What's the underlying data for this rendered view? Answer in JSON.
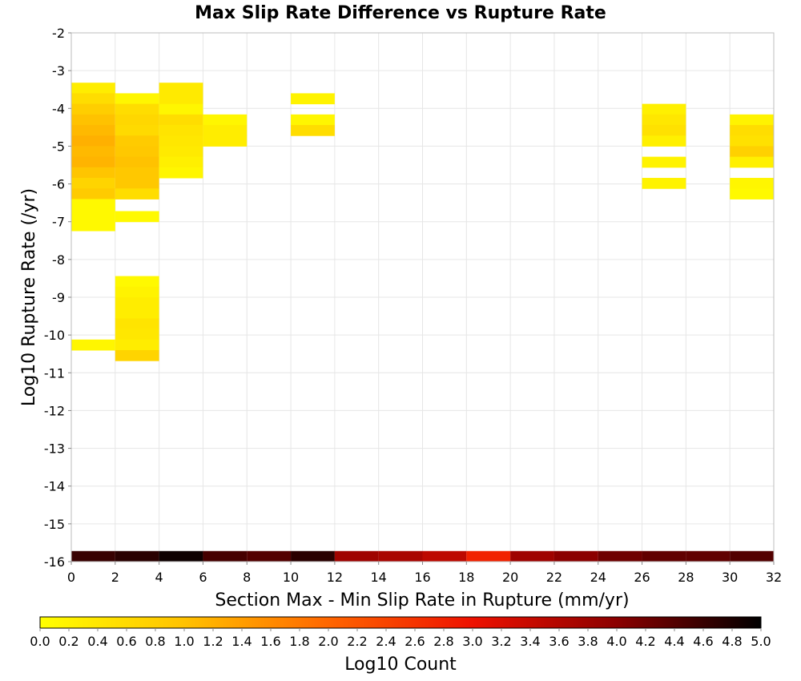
{
  "chart_data": {
    "type": "heatmap",
    "title": "Max Slip Rate Difference vs Rupture Rate",
    "xlabel": "Section Max - Min Slip Rate in Rupture (mm/yr)",
    "ylabel": "Log10 Rupture Rate (/yr)",
    "xlim": [
      0,
      32
    ],
    "ylim": [
      -16,
      -2
    ],
    "x_ticks": [
      "0",
      "2",
      "4",
      "6",
      "8",
      "10",
      "12",
      "14",
      "16",
      "18",
      "20",
      "22",
      "24",
      "26",
      "28",
      "30",
      "32"
    ],
    "y_ticks": [
      "-2",
      "-3",
      "-4",
      "-5",
      "-6",
      "-7",
      "-8",
      "-9",
      "-10",
      "-11",
      "-12",
      "-13",
      "-14",
      "-15",
      "-16"
    ],
    "grid": true,
    "x_bin_width": 2,
    "y_bin_width": 0.28,
    "colorbar": {
      "label": "Log10 Count",
      "range": [
        0,
        5
      ],
      "ticks": [
        "0.0",
        "0.2",
        "0.4",
        "0.6",
        "0.8",
        "1.0",
        "1.2",
        "1.4",
        "1.6",
        "1.8",
        "2.0",
        "2.2",
        "2.4",
        "2.6",
        "2.8",
        "3.0",
        "3.2",
        "3.4",
        "3.6",
        "3.8",
        "4.0",
        "4.2",
        "4.4",
        "4.6",
        "4.8",
        "5.0"
      ],
      "colors": [
        "#ffff00",
        "#ffc200",
        "#ff6600",
        "#ee1100",
        "#8b0000",
        "#000000"
      ]
    },
    "cells": [
      {
        "x": 0,
        "y": -3.6,
        "v": 0.3
      },
      {
        "x": 0,
        "y": -3.88,
        "v": 0.55
      },
      {
        "x": 0,
        "y": -4.16,
        "v": 0.8
      },
      {
        "x": 0,
        "y": -4.44,
        "v": 1.0
      },
      {
        "x": 0,
        "y": -4.72,
        "v": 1.1
      },
      {
        "x": 0,
        "y": -5.0,
        "v": 1.2
      },
      {
        "x": 0,
        "y": -5.28,
        "v": 1.1
      },
      {
        "x": 0,
        "y": -5.56,
        "v": 1.15
      },
      {
        "x": 0,
        "y": -5.84,
        "v": 0.95
      },
      {
        "x": 0,
        "y": -6.12,
        "v": 0.7
      },
      {
        "x": 0,
        "y": -6.4,
        "v": 0.85
      },
      {
        "x": 0,
        "y": -6.68,
        "v": 0.1
      },
      {
        "x": 0,
        "y": -6.96,
        "v": 0.1
      },
      {
        "x": 0,
        "y": -7.24,
        "v": 0.1
      },
      {
        "x": 0,
        "y": -10.4,
        "v": 0.15
      },
      {
        "x": 2,
        "y": -3.88,
        "v": 0.15
      },
      {
        "x": 2,
        "y": -4.16,
        "v": 0.55
      },
      {
        "x": 2,
        "y": -4.44,
        "v": 0.65
      },
      {
        "x": 2,
        "y": -4.72,
        "v": 0.6
      },
      {
        "x": 2,
        "y": -5.0,
        "v": 0.85
      },
      {
        "x": 2,
        "y": -5.28,
        "v": 0.9
      },
      {
        "x": 2,
        "y": -5.56,
        "v": 1.0
      },
      {
        "x": 2,
        "y": -5.84,
        "v": 0.9
      },
      {
        "x": 2,
        "y": -6.12,
        "v": 0.9
      },
      {
        "x": 2,
        "y": -6.4,
        "v": 0.55
      },
      {
        "x": 2,
        "y": -7.0,
        "v": 0.1
      },
      {
        "x": 2,
        "y": -8.72,
        "v": 0.1
      },
      {
        "x": 2,
        "y": -9.0,
        "v": 0.2
      },
      {
        "x": 2,
        "y": -9.28,
        "v": 0.3
      },
      {
        "x": 2,
        "y": -9.56,
        "v": 0.3
      },
      {
        "x": 2,
        "y": -9.84,
        "v": 0.45
      },
      {
        "x": 2,
        "y": -10.12,
        "v": 0.4
      },
      {
        "x": 2,
        "y": -10.4,
        "v": 0.3
      },
      {
        "x": 2,
        "y": -10.68,
        "v": 0.7
      },
      {
        "x": 4,
        "y": -3.6,
        "v": 0.35
      },
      {
        "x": 4,
        "y": -3.88,
        "v": 0.35
      },
      {
        "x": 4,
        "y": -4.16,
        "v": 0.15
      },
      {
        "x": 4,
        "y": -4.44,
        "v": 0.55
      },
      {
        "x": 4,
        "y": -4.72,
        "v": 0.45
      },
      {
        "x": 4,
        "y": -5.0,
        "v": 0.4
      },
      {
        "x": 4,
        "y": -5.28,
        "v": 0.35
      },
      {
        "x": 4,
        "y": -5.56,
        "v": 0.25
      },
      {
        "x": 4,
        "y": -5.84,
        "v": 0.15
      },
      {
        "x": 6,
        "y": -4.44,
        "v": 0.15
      },
      {
        "x": 6,
        "y": -4.72,
        "v": 0.3
      },
      {
        "x": 6,
        "y": -5.0,
        "v": 0.3
      },
      {
        "x": 10,
        "y": -3.88,
        "v": 0.2
      },
      {
        "x": 10,
        "y": -4.44,
        "v": 0.15
      },
      {
        "x": 10,
        "y": -4.72,
        "v": 0.55
      },
      {
        "x": 26,
        "y": -4.16,
        "v": 0.25
      },
      {
        "x": 26,
        "y": -4.44,
        "v": 0.4
      },
      {
        "x": 26,
        "y": -4.72,
        "v": 0.5
      },
      {
        "x": 26,
        "y": -5.0,
        "v": 0.25
      },
      {
        "x": 26,
        "y": -5.56,
        "v": 0.2
      },
      {
        "x": 26,
        "y": -6.12,
        "v": 0.2
      },
      {
        "x": 30,
        "y": -4.44,
        "v": 0.2
      },
      {
        "x": 30,
        "y": -4.72,
        "v": 0.55
      },
      {
        "x": 30,
        "y": -5.0,
        "v": 0.5
      },
      {
        "x": 30,
        "y": -5.28,
        "v": 0.75
      },
      {
        "x": 30,
        "y": -5.56,
        "v": 0.25
      },
      {
        "x": 30,
        "y": -6.12,
        "v": 0.15
      },
      {
        "x": 30,
        "y": -6.4,
        "v": 0.1
      },
      {
        "x": 0,
        "y": -16.0,
        "v": 4.6
      },
      {
        "x": 2,
        "y": -16.0,
        "v": 4.7
      },
      {
        "x": 4,
        "y": -16.0,
        "v": 4.9
      },
      {
        "x": 6,
        "y": -16.0,
        "v": 4.5
      },
      {
        "x": 8,
        "y": -16.0,
        "v": 4.4
      },
      {
        "x": 10,
        "y": -16.0,
        "v": 4.7
      },
      {
        "x": 12,
        "y": -16.0,
        "v": 3.8
      },
      {
        "x": 14,
        "y": -16.0,
        "v": 3.7
      },
      {
        "x": 16,
        "y": -16.0,
        "v": 3.5
      },
      {
        "x": 18,
        "y": -16.0,
        "v": 2.8
      },
      {
        "x": 20,
        "y": -16.0,
        "v": 3.8
      },
      {
        "x": 22,
        "y": -16.0,
        "v": 4.0
      },
      {
        "x": 24,
        "y": -16.0,
        "v": 4.2
      },
      {
        "x": 26,
        "y": -16.0,
        "v": 4.3
      },
      {
        "x": 28,
        "y": -16.0,
        "v": 4.3
      },
      {
        "x": 30,
        "y": -16.0,
        "v": 4.4
      }
    ]
  }
}
